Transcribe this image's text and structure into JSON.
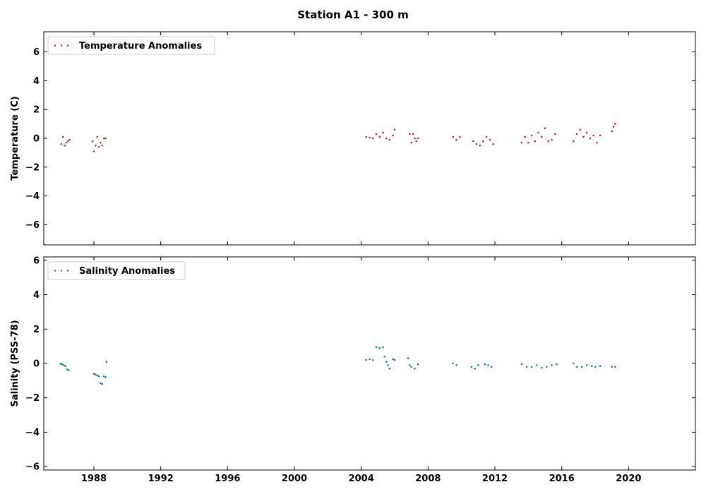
{
  "figure_title": "Station A1 - 300 m",
  "chart_data": [
    {
      "type": "scatter",
      "title": "Station A1 - 300 m",
      "xlabel": "",
      "ylabel": "Temperature (C)",
      "xlim": [
        1985.0,
        2024.0
      ],
      "ylim": [
        -7.4,
        7.4
      ],
      "xticks": [
        1988,
        1992,
        1996,
        2000,
        2004,
        2008,
        2012,
        2016,
        2020
      ],
      "yticks": [
        -6,
        -4,
        -2,
        0,
        2,
        4,
        6
      ],
      "ytick_labels": [
        "−6",
        "−4",
        "−2",
        "0",
        "2",
        "4",
        "6"
      ],
      "grid": false,
      "legend": "top-left",
      "color": "#d62728",
      "series": [
        {
          "name": "Temperature Anomalies",
          "x": [
            1986.05,
            1986.15,
            1986.25,
            1986.35,
            1986.45,
            1986.55,
            1987.92,
            1988.0,
            1988.1,
            1988.2,
            1988.3,
            1988.4,
            1988.5,
            1988.6,
            1988.7,
            2004.3,
            2004.5,
            2004.7,
            2004.9,
            2005.1,
            2005.3,
            2005.5,
            2005.7,
            2005.9,
            2006.0,
            2006.9,
            2007.0,
            2007.1,
            2007.2,
            2007.3,
            2007.4,
            2009.5,
            2009.7,
            2009.9,
            2010.7,
            2010.9,
            2011.1,
            2011.3,
            2011.5,
            2011.7,
            2011.9,
            2013.6,
            2013.8,
            2014.0,
            2014.2,
            2014.4,
            2014.6,
            2014.8,
            2015.0,
            2015.2,
            2015.4,
            2015.6,
            2016.7,
            2016.9,
            2017.1,
            2017.3,
            2017.5,
            2017.7,
            2017.9,
            2018.1,
            2018.3,
            2019.0,
            2019.1,
            2019.2
          ],
          "y": [
            -0.4,
            0.1,
            -0.5,
            -0.3,
            -0.2,
            -0.1,
            -0.2,
            -0.9,
            -0.5,
            0.1,
            -0.6,
            -0.3,
            -0.5,
            0,
            0,
            0.1,
            0.05,
            0.0,
            0.3,
            0.1,
            0.4,
            0.0,
            -0.1,
            0.2,
            0.6,
            0.3,
            -0.3,
            0.3,
            0.0,
            -0.2,
            0.0,
            0.1,
            -0.1,
            0.1,
            -0.2,
            -0.4,
            -0.5,
            -0.2,
            0.1,
            -0.1,
            -0.4,
            -0.3,
            0.1,
            -0.3,
            0.2,
            -0.2,
            0.4,
            0.1,
            0.7,
            -0.2,
            -0.1,
            0.3,
            -0.2,
            0.3,
            0.6,
            0.1,
            0.4,
            0.0,
            0.2,
            -0.3,
            0.2,
            0.5,
            0.8,
            1.0
          ]
        }
      ]
    },
    {
      "type": "scatter",
      "xlabel": "",
      "ylabel": "Salinity (PSS-78)",
      "xlim": [
        1985.0,
        2024.0
      ],
      "ylim": [
        -6.2,
        6.2
      ],
      "xticks": [
        1988,
        1992,
        1996,
        2000,
        2004,
        2008,
        2012,
        2016,
        2020
      ],
      "xtick_labels": [
        "1988",
        "1992",
        "1996",
        "2000",
        "2004",
        "2008",
        "2012",
        "2016",
        "2020"
      ],
      "yticks": [
        -6,
        -4,
        -2,
        0,
        2,
        4,
        6
      ],
      "ytick_labels": [
        "−6",
        "−4",
        "−2",
        "0",
        "2",
        "4",
        "6"
      ],
      "grid": false,
      "legend": "top-left",
      "color": "#1f77b4",
      "series": [
        {
          "name": "Salinity Anomalies",
          "x": [
            1986.0,
            1986.1,
            1986.2,
            1986.3,
            1986.4,
            1986.5,
            1988.0,
            1988.1,
            1988.2,
            1988.3,
            1988.4,
            1988.5,
            1988.6,
            1988.7,
            1988.75,
            2004.3,
            2004.5,
            2004.7,
            2004.9,
            2005.1,
            2005.3,
            2005.4,
            2005.5,
            2005.6,
            2005.7,
            2005.9,
            2006.0,
            2006.8,
            2006.9,
            2007.0,
            2007.2,
            2007.4,
            2009.5,
            2009.7,
            2010.6,
            2010.8,
            2011.0,
            2011.4,
            2011.6,
            2011.8,
            2013.6,
            2013.9,
            2014.2,
            2014.5,
            2014.8,
            2015.1,
            2015.4,
            2015.7,
            2016.7,
            2016.9,
            2017.2,
            2017.5,
            2017.8,
            2018.0,
            2018.3,
            2019.0,
            2019.2
          ],
          "y": [
            -0.02,
            -0.05,
            -0.1,
            -0.15,
            -0.35,
            -0.4,
            -0.6,
            -0.65,
            -0.7,
            -0.75,
            -1.15,
            -1.2,
            -0.75,
            -0.8,
            0.1,
            0.2,
            0.25,
            0.2,
            0.95,
            0.9,
            0.95,
            0.4,
            0.1,
            -0.1,
            -0.3,
            0.25,
            0.2,
            0.3,
            -0.1,
            -0.2,
            -0.3,
            -0.05,
            0.0,
            -0.1,
            -0.2,
            -0.3,
            -0.1,
            -0.05,
            -0.1,
            -0.2,
            -0.05,
            -0.2,
            -0.2,
            -0.1,
            -0.25,
            -0.2,
            -0.1,
            -0.05,
            0.0,
            -0.2,
            -0.2,
            -0.1,
            -0.15,
            -0.2,
            -0.15,
            -0.2,
            -0.2
          ]
        }
      ]
    }
  ]
}
